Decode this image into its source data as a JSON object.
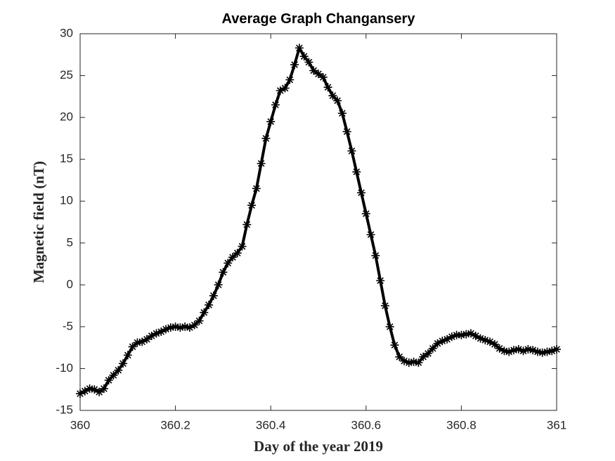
{
  "chart_data": {
    "type": "line",
    "title": "Average Graph Changansery",
    "xlabel": "Day of the year 2019",
    "ylabel": "Magnetic field (nT)",
    "xlim": [
      360,
      361
    ],
    "xticks": [
      360,
      360.2,
      360.4,
      360.6,
      360.8,
      361
    ],
    "ylim": [
      -15,
      30
    ],
    "yticks": [
      -15,
      -10,
      -5,
      0,
      5,
      10,
      15,
      20,
      25,
      30
    ],
    "marker": "*",
    "box": true,
    "x": [
      360,
      360.01,
      360.02,
      360.03,
      360.04,
      360.05,
      360.06,
      360.07,
      360.08,
      360.09,
      360.1,
      360.11,
      360.12,
      360.13,
      360.14,
      360.15,
      360.16,
      360.17,
      360.18,
      360.19,
      360.2,
      360.21,
      360.22,
      360.23,
      360.24,
      360.25,
      360.26,
      360.27,
      360.28,
      360.29,
      360.3,
      360.31,
      360.32,
      360.33,
      360.34,
      360.35,
      360.36,
      360.37,
      360.38,
      360.39,
      360.4,
      360.41,
      360.42,
      360.43,
      360.44,
      360.45,
      360.46,
      360.47,
      360.48,
      360.49,
      360.5,
      360.51,
      360.52,
      360.53,
      360.54,
      360.55,
      360.56,
      360.57,
      360.58,
      360.59,
      360.6,
      360.61,
      360.62,
      360.63,
      360.64,
      360.65,
      360.66,
      360.67,
      360.68,
      360.69,
      360.7,
      360.71,
      360.72,
      360.73,
      360.74,
      360.75,
      360.76,
      360.77,
      360.78,
      360.79,
      360.8,
      360.81,
      360.82,
      360.83,
      360.84,
      360.85,
      360.86,
      360.87,
      360.88,
      360.89,
      360.9,
      360.91,
      360.92,
      360.93,
      360.94,
      360.95,
      360.96,
      360.97,
      360.98,
      360.99,
      361
    ],
    "series": [
      {
        "color": "#000000",
        "values": [
          -13,
          -12.7,
          -12.4,
          -12.5,
          -12.8,
          -12.4,
          -11.4,
          -10.8,
          -10.2,
          -9.4,
          -8.4,
          -7.4,
          -6.9,
          -6.8,
          -6.5,
          -6.1,
          -5.8,
          -5.6,
          -5.3,
          -5.1,
          -5.0,
          -5.1,
          -5.0,
          -5.1,
          -4.8,
          -4.3,
          -3.3,
          -2.4,
          -1.3,
          0,
          1.5,
          2.6,
          3.3,
          3.8,
          4.6,
          7.2,
          9.5,
          11.5,
          14.5,
          17.5,
          19.5,
          21.5,
          23.2,
          23.5,
          24.5,
          26.3,
          28.3,
          27.3,
          26.6,
          25.6,
          25.2,
          24.8,
          23.6,
          22.6,
          22.0,
          20.5,
          18.3,
          16,
          13.5,
          11,
          8.5,
          6,
          3.5,
          0.5,
          -2.5,
          -5,
          -7.2,
          -8.6,
          -9.1,
          -9.3,
          -9.2,
          -9.3,
          -8.6,
          -8.2,
          -7.6,
          -7.0,
          -6.7,
          -6.5,
          -6.2,
          -6.0,
          -6.0,
          -5.9,
          -5.8,
          -6.1,
          -6.4,
          -6.6,
          -6.8,
          -7.1,
          -7.6,
          -7.9,
          -8.0,
          -7.8,
          -7.7,
          -7.9,
          -7.7,
          -7.8,
          -8.0,
          -8.1,
          -8.0,
          -7.9,
          -7.7
        ]
      }
    ]
  }
}
